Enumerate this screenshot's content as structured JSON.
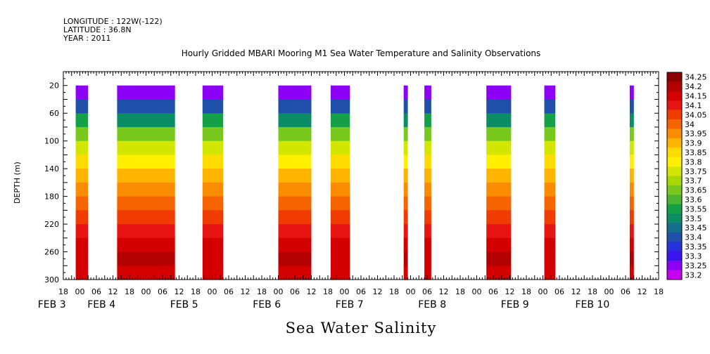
{
  "header": {
    "longitude": "LONGITUDE : 122W(-122)",
    "latitude": "LATITUDE : 36.8N",
    "year": "YEAR : 2011"
  },
  "chart_data": {
    "type": "heatmap",
    "title": "Hourly Gridded MBARI Mooring M1 Sea Water Temperature and Salinity Observations",
    "xlabel": "Sea Water Salinity",
    "ylabel": "DEPTH (m)",
    "x_axis": {
      "range_hours": [
        -6,
        426
      ],
      "hour_ticks": [
        "18",
        "00",
        "06",
        "12",
        "18",
        "00",
        "06",
        "12",
        "18",
        "00",
        "06",
        "12",
        "18",
        "00",
        "06",
        "12",
        "18",
        "00",
        "06",
        "12",
        "18",
        "00",
        "06",
        "12",
        "18",
        "00",
        "06",
        "12",
        "18",
        "00",
        "06",
        "12",
        "18",
        "00",
        "06",
        "12",
        "18"
      ],
      "day_labels": [
        {
          "label": "FEB  3",
          "hour": 0
        },
        {
          "label": "FEB  4",
          "hour": 36
        },
        {
          "label": "FEB  5",
          "hour": 96
        },
        {
          "label": "FEB  6",
          "hour": 156
        },
        {
          "label": "FEB  7",
          "hour": 216
        },
        {
          "label": "FEB  8",
          "hour": 276
        },
        {
          "label": "FEB  9",
          "hour": 336
        },
        {
          "label": "FEB 10",
          "hour": 390
        }
      ]
    },
    "y_axis": {
      "range": [
        300,
        0
      ],
      "ticks": [
        20,
        60,
        100,
        140,
        180,
        220,
        260,
        300
      ],
      "data_top": 20
    },
    "data_blocks": [
      {
        "start_hour": 3,
        "end_hour": 12
      },
      {
        "start_hour": 33,
        "end_hour": 75
      },
      {
        "start_hour": 95,
        "end_hour": 110
      },
      {
        "start_hour": 150,
        "end_hour": 174
      },
      {
        "start_hour": 188,
        "end_hour": 202
      },
      {
        "start_hour": 241,
        "end_hour": 244
      },
      {
        "start_hour": 256,
        "end_hour": 261
      },
      {
        "start_hour": 301,
        "end_hour": 319
      },
      {
        "start_hour": 343,
        "end_hour": 351
      },
      {
        "start_hour": 405,
        "end_hour": 408
      }
    ],
    "depth_profile": [
      {
        "depth": 20,
        "salinity": 33.28
      },
      {
        "depth": 40,
        "salinity": 33.42
      },
      {
        "depth": 60,
        "salinity": 33.55
      },
      {
        "depth": 80,
        "salinity": 33.68
      },
      {
        "depth": 100,
        "salinity": 33.76
      },
      {
        "depth": 120,
        "salinity": 33.84
      },
      {
        "depth": 140,
        "salinity": 33.92
      },
      {
        "depth": 160,
        "salinity": 33.98
      },
      {
        "depth": 180,
        "salinity": 34.03
      },
      {
        "depth": 200,
        "salinity": 34.08
      },
      {
        "depth": 220,
        "salinity": 34.12
      },
      {
        "depth": 240,
        "salinity": 34.17
      },
      {
        "depth": 260,
        "salinity": 34.2
      },
      {
        "depth": 280,
        "salinity": 34.17
      },
      {
        "depth": 300,
        "salinity": 34.12
      }
    ],
    "colorbar": {
      "levels": [
        "34.25",
        "34.2",
        "34.15",
        "34.1",
        "34.05",
        "34",
        "33.95",
        "33.9",
        "33.85",
        "33.8",
        "33.75",
        "33.7",
        "33.65",
        "33.6",
        "33.55",
        "33.5",
        "33.45",
        "33.4",
        "33.35",
        "33.3",
        "33.25",
        "33.2"
      ],
      "colors": [
        "#8c0000",
        "#b30000",
        "#d40000",
        "#e81414",
        "#f03c00",
        "#f56400",
        "#fa8c00",
        "#ffb400",
        "#ffdc00",
        "#fff000",
        "#d2e600",
        "#a5d700",
        "#78c81e",
        "#4bb432",
        "#14a046",
        "#0a8c64",
        "#146e8c",
        "#1e50aa",
        "#2832dc",
        "#3c14f0",
        "#8c00f5",
        "#c800f0"
      ]
    }
  }
}
